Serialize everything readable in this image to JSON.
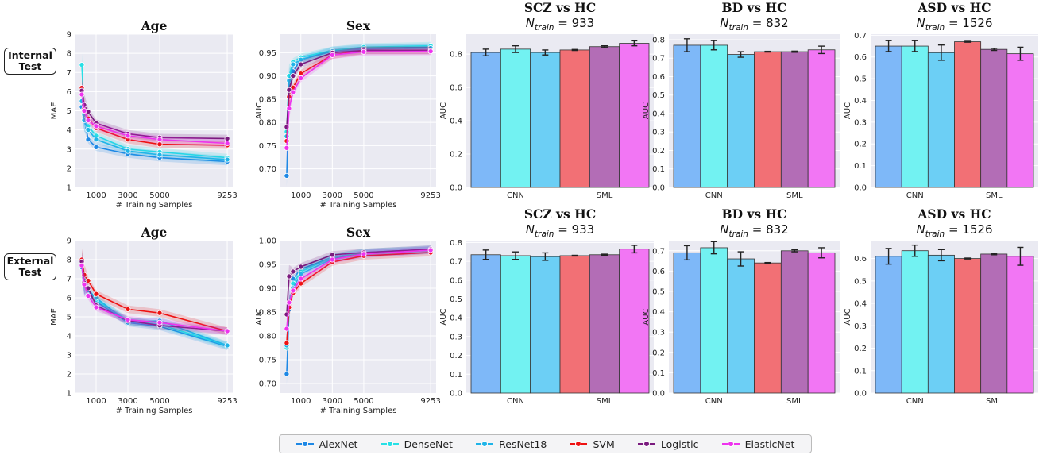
{
  "row_labels": {
    "internal": [
      "Internal",
      "Test"
    ],
    "external": [
      "External",
      "Test"
    ]
  },
  "legend": {
    "items": [
      {
        "name": "AlexNet",
        "color": "#1e88e5"
      },
      {
        "name": "DenseNet",
        "color": "#28e0e6"
      },
      {
        "name": "ResNet18",
        "color": "#1fb4e8"
      },
      {
        "name": "SVM",
        "color": "#ee1111"
      },
      {
        "name": "Logistic",
        "color": "#7a1a7e"
      },
      {
        "name": "ElasticNet",
        "color": "#ee33ee"
      }
    ]
  },
  "chart_data": [
    {
      "id": "int-age",
      "type": "line",
      "title": "Age",
      "xlabel": "# Training Samples",
      "ylabel": "MAE",
      "ylim": [
        1,
        9
      ],
      "yticks": [
        1,
        2,
        3,
        4,
        5,
        6,
        7,
        8,
        9
      ],
      "xlim": [
        -300,
        9600
      ],
      "xticks": [
        1000,
        3000,
        5000,
        9253
      ],
      "grid": true,
      "x": [
        100,
        250,
        500,
        1000,
        3000,
        5000,
        9253
      ],
      "series": [
        {
          "name": "AlexNet",
          "color": "#1e88e5",
          "values": [
            5.2,
            4.6,
            3.5,
            3.1,
            2.75,
            2.55,
            2.35
          ]
        },
        {
          "name": "DenseNet",
          "color": "#28e0e6",
          "values": [
            7.4,
            4.8,
            4.2,
            3.7,
            3.0,
            2.85,
            2.55
          ]
        },
        {
          "name": "ResNet18",
          "color": "#1fb4e8",
          "values": [
            5.5,
            4.5,
            4.0,
            3.5,
            2.9,
            2.7,
            2.45
          ]
        },
        {
          "name": "SVM",
          "color": "#ee1111",
          "values": [
            6.2,
            5.1,
            4.6,
            4.1,
            3.5,
            3.25,
            3.2
          ]
        },
        {
          "name": "Logistic",
          "color": "#7a1a7e",
          "values": [
            6.05,
            5.3,
            4.95,
            4.35,
            3.8,
            3.6,
            3.55
          ]
        },
        {
          "name": "ElasticNet",
          "color": "#ee33ee",
          "values": [
            5.85,
            5.0,
            4.5,
            4.2,
            3.7,
            3.5,
            3.3
          ]
        }
      ]
    },
    {
      "id": "int-sex",
      "type": "line",
      "title": "Sex",
      "xlabel": "# Training Samples",
      "ylabel": "AUC",
      "ylim": [
        0.66,
        0.99
      ],
      "yticks": [
        0.7,
        0.75,
        0.8,
        0.85,
        0.9,
        0.95
      ],
      "xlim": [
        -300,
        9600
      ],
      "xticks": [
        1000,
        3000,
        5000,
        9253
      ],
      "grid": true,
      "x": [
        100,
        250,
        500,
        1000,
        3000,
        5000,
        9253
      ],
      "series": [
        {
          "name": "AlexNet",
          "color": "#1e88e5",
          "values": [
            0.685,
            0.87,
            0.91,
            0.935,
            0.955,
            0.96,
            0.962
          ]
        },
        {
          "name": "DenseNet",
          "color": "#28e0e6",
          "values": [
            0.78,
            0.9,
            0.93,
            0.94,
            0.955,
            0.962,
            0.965
          ]
        },
        {
          "name": "ResNet18",
          "color": "#1fb4e8",
          "values": [
            0.77,
            0.89,
            0.925,
            0.935,
            0.953,
            0.958,
            0.96
          ]
        },
        {
          "name": "SVM",
          "color": "#ee1111",
          "values": [
            0.76,
            0.855,
            0.875,
            0.905,
            0.945,
            0.955,
            0.955
          ]
        },
        {
          "name": "Logistic",
          "color": "#7a1a7e",
          "values": [
            0.79,
            0.87,
            0.9,
            0.925,
            0.95,
            0.955,
            0.955
          ]
        },
        {
          "name": "ElasticNet",
          "color": "#ee33ee",
          "values": [
            0.745,
            0.83,
            0.865,
            0.895,
            0.945,
            0.952,
            0.953
          ]
        }
      ]
    },
    {
      "id": "int-scz",
      "type": "bar",
      "title": "SCZ vs HC",
      "subtitle": [
        "N",
        "train",
        " = 933"
      ],
      "ylabel": "AUC",
      "ylim": [
        0,
        0.92
      ],
      "yticks": [
        0.0,
        0.2,
        0.4,
        0.6,
        0.8
      ],
      "categories": [
        "CNN",
        "SML"
      ],
      "grid": true,
      "bars": [
        {
          "name": "AlexNet",
          "color": "#7eb8f8",
          "value": 0.81,
          "err": 0.02
        },
        {
          "name": "DenseNet",
          "color": "#72f2f2",
          "value": 0.83,
          "err": 0.02
        },
        {
          "name": "ResNet18",
          "color": "#6ccff5",
          "value": 0.81,
          "err": 0.015
        },
        {
          "name": "SVM",
          "color": "#f27075",
          "value": 0.825,
          "err": 0.003
        },
        {
          "name": "Logistic",
          "color": "#b36db6",
          "value": 0.845,
          "err": 0.005
        },
        {
          "name": "ElasticNet",
          "color": "#f276f4",
          "value": 0.865,
          "err": 0.015
        }
      ]
    },
    {
      "id": "int-bd",
      "type": "bar",
      "title": "BD vs HC",
      "subtitle": [
        "N",
        "train",
        " = 832"
      ],
      "ylabel": "AUC",
      "ylim": [
        0,
        0.83
      ],
      "yticks": [
        0.0,
        0.1,
        0.2,
        0.3,
        0.4,
        0.5,
        0.6,
        0.7,
        0.8
      ],
      "categories": [
        "CNN",
        "SML"
      ],
      "grid": true,
      "bars": [
        {
          "name": "AlexNet",
          "color": "#7eb8f8",
          "value": 0.77,
          "err": 0.035
        },
        {
          "name": "DenseNet",
          "color": "#72f2f2",
          "value": 0.77,
          "err": 0.025
        },
        {
          "name": "ResNet18",
          "color": "#6ccff5",
          "value": 0.72,
          "err": 0.015
        },
        {
          "name": "SVM",
          "color": "#f27075",
          "value": 0.735,
          "err": 0.002
        },
        {
          "name": "Logistic",
          "color": "#b36db6",
          "value": 0.735,
          "err": 0.003
        },
        {
          "name": "ElasticNet",
          "color": "#f276f4",
          "value": 0.745,
          "err": 0.02
        }
      ]
    },
    {
      "id": "int-asd",
      "type": "bar",
      "title": "ASD vs HC",
      "subtitle": [
        "N",
        "train",
        " = 1526"
      ],
      "ylabel": "AUC",
      "ylim": [
        0,
        0.705
      ],
      "yticks": [
        0.0,
        0.1,
        0.2,
        0.3,
        0.4,
        0.5,
        0.6,
        0.7
      ],
      "categories": [
        "CNN",
        "SML"
      ],
      "grid": true,
      "bars": [
        {
          "name": "AlexNet",
          "color": "#7eb8f8",
          "value": 0.65,
          "err": 0.025
        },
        {
          "name": "DenseNet",
          "color": "#72f2f2",
          "value": 0.65,
          "err": 0.025
        },
        {
          "name": "ResNet18",
          "color": "#6ccff5",
          "value": 0.62,
          "err": 0.035
        },
        {
          "name": "SVM",
          "color": "#f27075",
          "value": 0.67,
          "err": 0.002
        },
        {
          "name": "Logistic",
          "color": "#b36db6",
          "value": 0.635,
          "err": 0.005
        },
        {
          "name": "ElasticNet",
          "color": "#f276f4",
          "value": 0.615,
          "err": 0.03
        }
      ]
    },
    {
      "id": "ext-age",
      "type": "line",
      "title": "Age",
      "xlabel": "# Training Samples",
      "ylabel": "MAE",
      "ylim": [
        1,
        9
      ],
      "yticks": [
        1,
        2,
        3,
        4,
        5,
        6,
        7,
        8,
        9
      ],
      "xlim": [
        -300,
        9600
      ],
      "xticks": [
        1000,
        3000,
        5000,
        9253
      ],
      "grid": true,
      "x": [
        100,
        250,
        500,
        1000,
        3000,
        5000,
        9253
      ],
      "series": [
        {
          "name": "AlexNet",
          "color": "#1e88e5",
          "values": [
            7.6,
            6.8,
            6.2,
            5.8,
            4.7,
            4.5,
            3.45
          ]
        },
        {
          "name": "DenseNet",
          "color": "#28e0e6",
          "values": [
            7.8,
            6.9,
            6.3,
            5.9,
            4.8,
            4.6,
            3.5
          ]
        },
        {
          "name": "ResNet18",
          "color": "#1fb4e8",
          "values": [
            7.7,
            6.7,
            6.4,
            6.0,
            4.7,
            4.8,
            3.5
          ]
        },
        {
          "name": "SVM",
          "color": "#ee1111",
          "values": [
            8.0,
            7.2,
            6.9,
            6.2,
            5.4,
            5.2,
            4.25
          ]
        },
        {
          "name": "Logistic",
          "color": "#7a1a7e",
          "values": [
            7.9,
            6.8,
            6.5,
            5.6,
            4.8,
            4.55,
            4.25
          ]
        },
        {
          "name": "ElasticNet",
          "color": "#ee33ee",
          "values": [
            7.7,
            6.7,
            6.1,
            5.5,
            4.85,
            4.7,
            4.25
          ]
        }
      ]
    },
    {
      "id": "ext-sex",
      "type": "line",
      "title": "Sex",
      "xlabel": "# Training Samples",
      "ylabel": "AUC",
      "ylim": [
        0.68,
        1.0
      ],
      "yticks": [
        0.7,
        0.75,
        0.8,
        0.85,
        0.9,
        0.95,
        1.0
      ],
      "xlim": [
        -300,
        9600
      ],
      "xticks": [
        1000,
        3000,
        5000,
        9253
      ],
      "grid": true,
      "x": [
        100,
        250,
        500,
        1000,
        3000,
        5000,
        9253
      ],
      "series": [
        {
          "name": "AlexNet",
          "color": "#1e88e5",
          "values": [
            0.72,
            0.855,
            0.92,
            0.94,
            0.965,
            0.975,
            0.982
          ]
        },
        {
          "name": "DenseNet",
          "color": "#28e0e6",
          "values": [
            0.775,
            0.87,
            0.91,
            0.935,
            0.965,
            0.975,
            0.98
          ]
        },
        {
          "name": "ResNet18",
          "color": "#1fb4e8",
          "values": [
            0.78,
            0.86,
            0.9,
            0.93,
            0.962,
            0.972,
            0.98
          ]
        },
        {
          "name": "SVM",
          "color": "#ee1111",
          "values": [
            0.785,
            0.86,
            0.89,
            0.91,
            0.955,
            0.968,
            0.975
          ]
        },
        {
          "name": "Logistic",
          "color": "#7a1a7e",
          "values": [
            0.845,
            0.925,
            0.935,
            0.945,
            0.97,
            0.975,
            0.982
          ]
        },
        {
          "name": "ElasticNet",
          "color": "#ee33ee",
          "values": [
            0.815,
            0.87,
            0.895,
            0.92,
            0.96,
            0.972,
            0.98
          ]
        }
      ]
    },
    {
      "id": "ext-scz",
      "type": "bar",
      "title": "SCZ vs HC",
      "subtitle": [
        "N",
        "train",
        " = 933"
      ],
      "ylabel": "AUC",
      "ylim": [
        0,
        0.81
      ],
      "yticks": [
        0.0,
        0.1,
        0.2,
        0.3,
        0.4,
        0.5,
        0.6,
        0.7,
        0.8
      ],
      "categories": [
        "CNN",
        "SML"
      ],
      "grid": true,
      "bars": [
        {
          "name": "AlexNet",
          "color": "#7eb8f8",
          "value": 0.735,
          "err": 0.025
        },
        {
          "name": "DenseNet",
          "color": "#72f2f2",
          "value": 0.73,
          "err": 0.02
        },
        {
          "name": "ResNet18",
          "color": "#6ccff5",
          "value": 0.725,
          "err": 0.02
        },
        {
          "name": "SVM",
          "color": "#f27075",
          "value": 0.73,
          "err": 0.002
        },
        {
          "name": "Logistic",
          "color": "#b36db6",
          "value": 0.735,
          "err": 0.003
        },
        {
          "name": "ElasticNet",
          "color": "#f276f4",
          "value": 0.765,
          "err": 0.02
        }
      ]
    },
    {
      "id": "ext-bd",
      "type": "bar",
      "title": "BD vs HC",
      "subtitle": [
        "N",
        "train",
        " = 832"
      ],
      "ylabel": "AUC",
      "ylim": [
        0,
        0.75
      ],
      "yticks": [
        0.0,
        0.1,
        0.2,
        0.3,
        0.4,
        0.5,
        0.6,
        0.7
      ],
      "categories": [
        "CNN",
        "SML"
      ],
      "grid": true,
      "bars": [
        {
          "name": "AlexNet",
          "color": "#7eb8f8",
          "value": 0.69,
          "err": 0.035
        },
        {
          "name": "DenseNet",
          "color": "#72f2f2",
          "value": 0.715,
          "err": 0.03
        },
        {
          "name": "ResNet18",
          "color": "#6ccff5",
          "value": 0.66,
          "err": 0.035
        },
        {
          "name": "SVM",
          "color": "#f27075",
          "value": 0.64,
          "err": 0.002
        },
        {
          "name": "Logistic",
          "color": "#b36db6",
          "value": 0.7,
          "err": 0.005
        },
        {
          "name": "ElasticNet",
          "color": "#f276f4",
          "value": 0.69,
          "err": 0.025
        }
      ]
    },
    {
      "id": "ext-asd",
      "type": "bar",
      "title": "ASD vs HC",
      "subtitle": [
        "N",
        "train",
        " = 1526"
      ],
      "ylabel": "AUC",
      "ylim": [
        0,
        0.68
      ],
      "yticks": [
        0.0,
        0.1,
        0.2,
        0.3,
        0.4,
        0.5,
        0.6
      ],
      "categories": [
        "CNN",
        "SML"
      ],
      "grid": true,
      "bars": [
        {
          "name": "AlexNet",
          "color": "#7eb8f8",
          "value": 0.61,
          "err": 0.035
        },
        {
          "name": "DenseNet",
          "color": "#72f2f2",
          "value": 0.635,
          "err": 0.025
        },
        {
          "name": "ResNet18",
          "color": "#6ccff5",
          "value": 0.615,
          "err": 0.025
        },
        {
          "name": "SVM",
          "color": "#f27075",
          "value": 0.6,
          "err": 0.002
        },
        {
          "name": "Logistic",
          "color": "#b36db6",
          "value": 0.62,
          "err": 0.003
        },
        {
          "name": "ElasticNet",
          "color": "#f276f4",
          "value": 0.61,
          "err": 0.04
        }
      ]
    }
  ]
}
